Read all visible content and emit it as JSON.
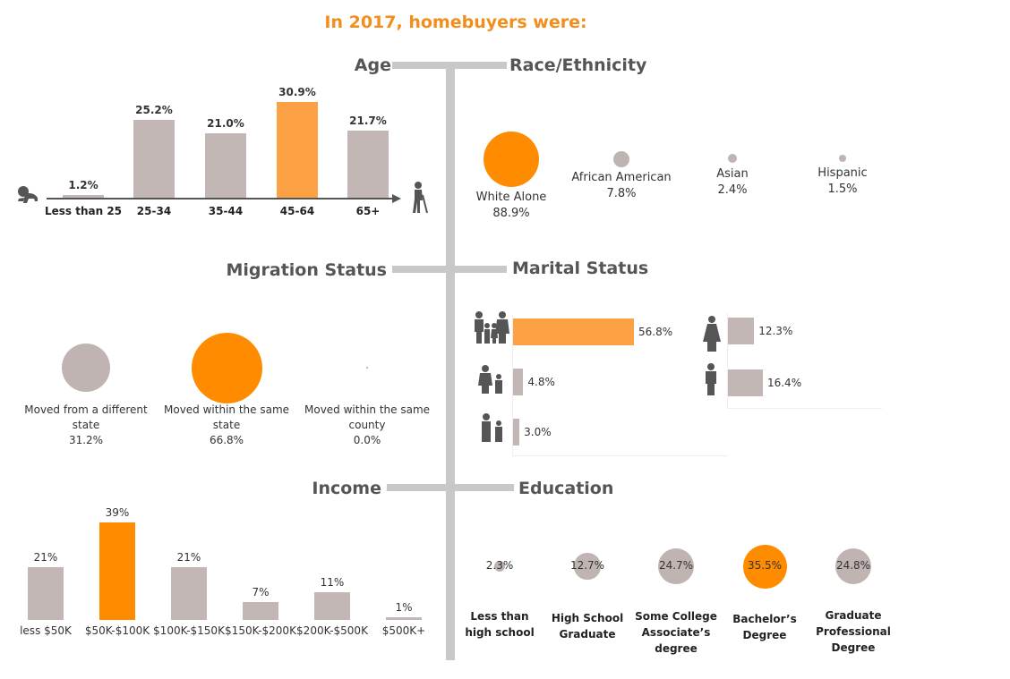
{
  "title": "In 2017, homebuyers were:",
  "sections": {
    "age": "Age",
    "race": "Race/Ethnicity",
    "migration": "Migration Status",
    "marital": "Marital Status",
    "income": "Income",
    "education": "Education"
  },
  "colors": {
    "accent": "#ff8c00",
    "accent_light": "#fca245",
    "neutral": "#c2b7b5",
    "spine": "#c8c8c8",
    "title": "#f28e1e"
  },
  "icons": {
    "age_start": "baby-icon",
    "age_end": "elderly-person-icon",
    "marital": [
      "family-icon",
      "single-parent-icon",
      "two-children-icon",
      "single-woman-icon",
      "single-man-icon"
    ]
  },
  "chart_data": [
    {
      "type": "bar",
      "name": "age",
      "categories": [
        "Less than 25",
        "25-34",
        "35-44",
        "45-64",
        "65+"
      ],
      "values": [
        1.2,
        25.2,
        21.0,
        30.9,
        21.7
      ],
      "labels": [
        "1.2%",
        "25.2%",
        "21.0%",
        "30.9%",
        "21.7%"
      ],
      "highlight": 3
    },
    {
      "type": "bubble",
      "name": "race",
      "categories": [
        "White Alone",
        "African American",
        "Asian",
        "Hispanic"
      ],
      "values": [
        88.9,
        7.8,
        2.4,
        1.5
      ],
      "labels": [
        "88.9%",
        "7.8%",
        "2.4%",
        "1.5%"
      ],
      "highlight": 0
    },
    {
      "type": "bubble",
      "name": "migration",
      "categories": [
        "Moved from a different state",
        "Moved within the same state",
        "Moved within the same county"
      ],
      "values": [
        31.2,
        66.8,
        0.0
      ],
      "labels": [
        "31.2%",
        "66.8%",
        "0.0%"
      ],
      "highlight": 1
    },
    {
      "type": "bar",
      "name": "marital",
      "orientation": "horizontal",
      "groups": [
        {
          "icons": [
            "family-icon",
            "single-parent-icon",
            "two-children-icon"
          ],
          "values": [
            56.8,
            4.8,
            3.0
          ],
          "labels": [
            "56.8%",
            "4.8%",
            "3.0%"
          ],
          "highlight": 0
        },
        {
          "icons": [
            "single-woman-icon",
            "single-man-icon"
          ],
          "values": [
            12.3,
            16.4
          ],
          "labels": [
            "12.3%",
            "16.4%"
          ]
        }
      ]
    },
    {
      "type": "bar",
      "name": "income",
      "categories": [
        "less $50K",
        "$50K-$100K",
        "$100K-$150K",
        "$150K-$200K",
        "$200K-$500K",
        "$500K+"
      ],
      "values": [
        21,
        39,
        21,
        7,
        11,
        1
      ],
      "labels": [
        "21%",
        "39%",
        "21%",
        "7%",
        "11%",
        "1%"
      ],
      "highlight": 1
    },
    {
      "type": "bubble",
      "name": "education",
      "categories": [
        "Less than high school",
        "High School Graduate",
        "Some College Associate’s degree",
        "Bachelor’s Degree",
        "Graduate Professional Degree"
      ],
      "categories_lines": [
        [
          "Less than",
          "high school"
        ],
        [
          "High School",
          "Graduate"
        ],
        [
          "Some College",
          "Associate’s",
          "degree"
        ],
        [
          "Bachelor’s",
          "Degree"
        ],
        [
          "Graduate",
          "Professional",
          "Degree"
        ]
      ],
      "values": [
        2.3,
        12.7,
        24.7,
        35.5,
        24.8
      ],
      "labels": [
        "2.3%",
        "12.7%",
        "24.7%",
        "35.5%",
        "24.8%"
      ],
      "highlight": 3
    }
  ]
}
